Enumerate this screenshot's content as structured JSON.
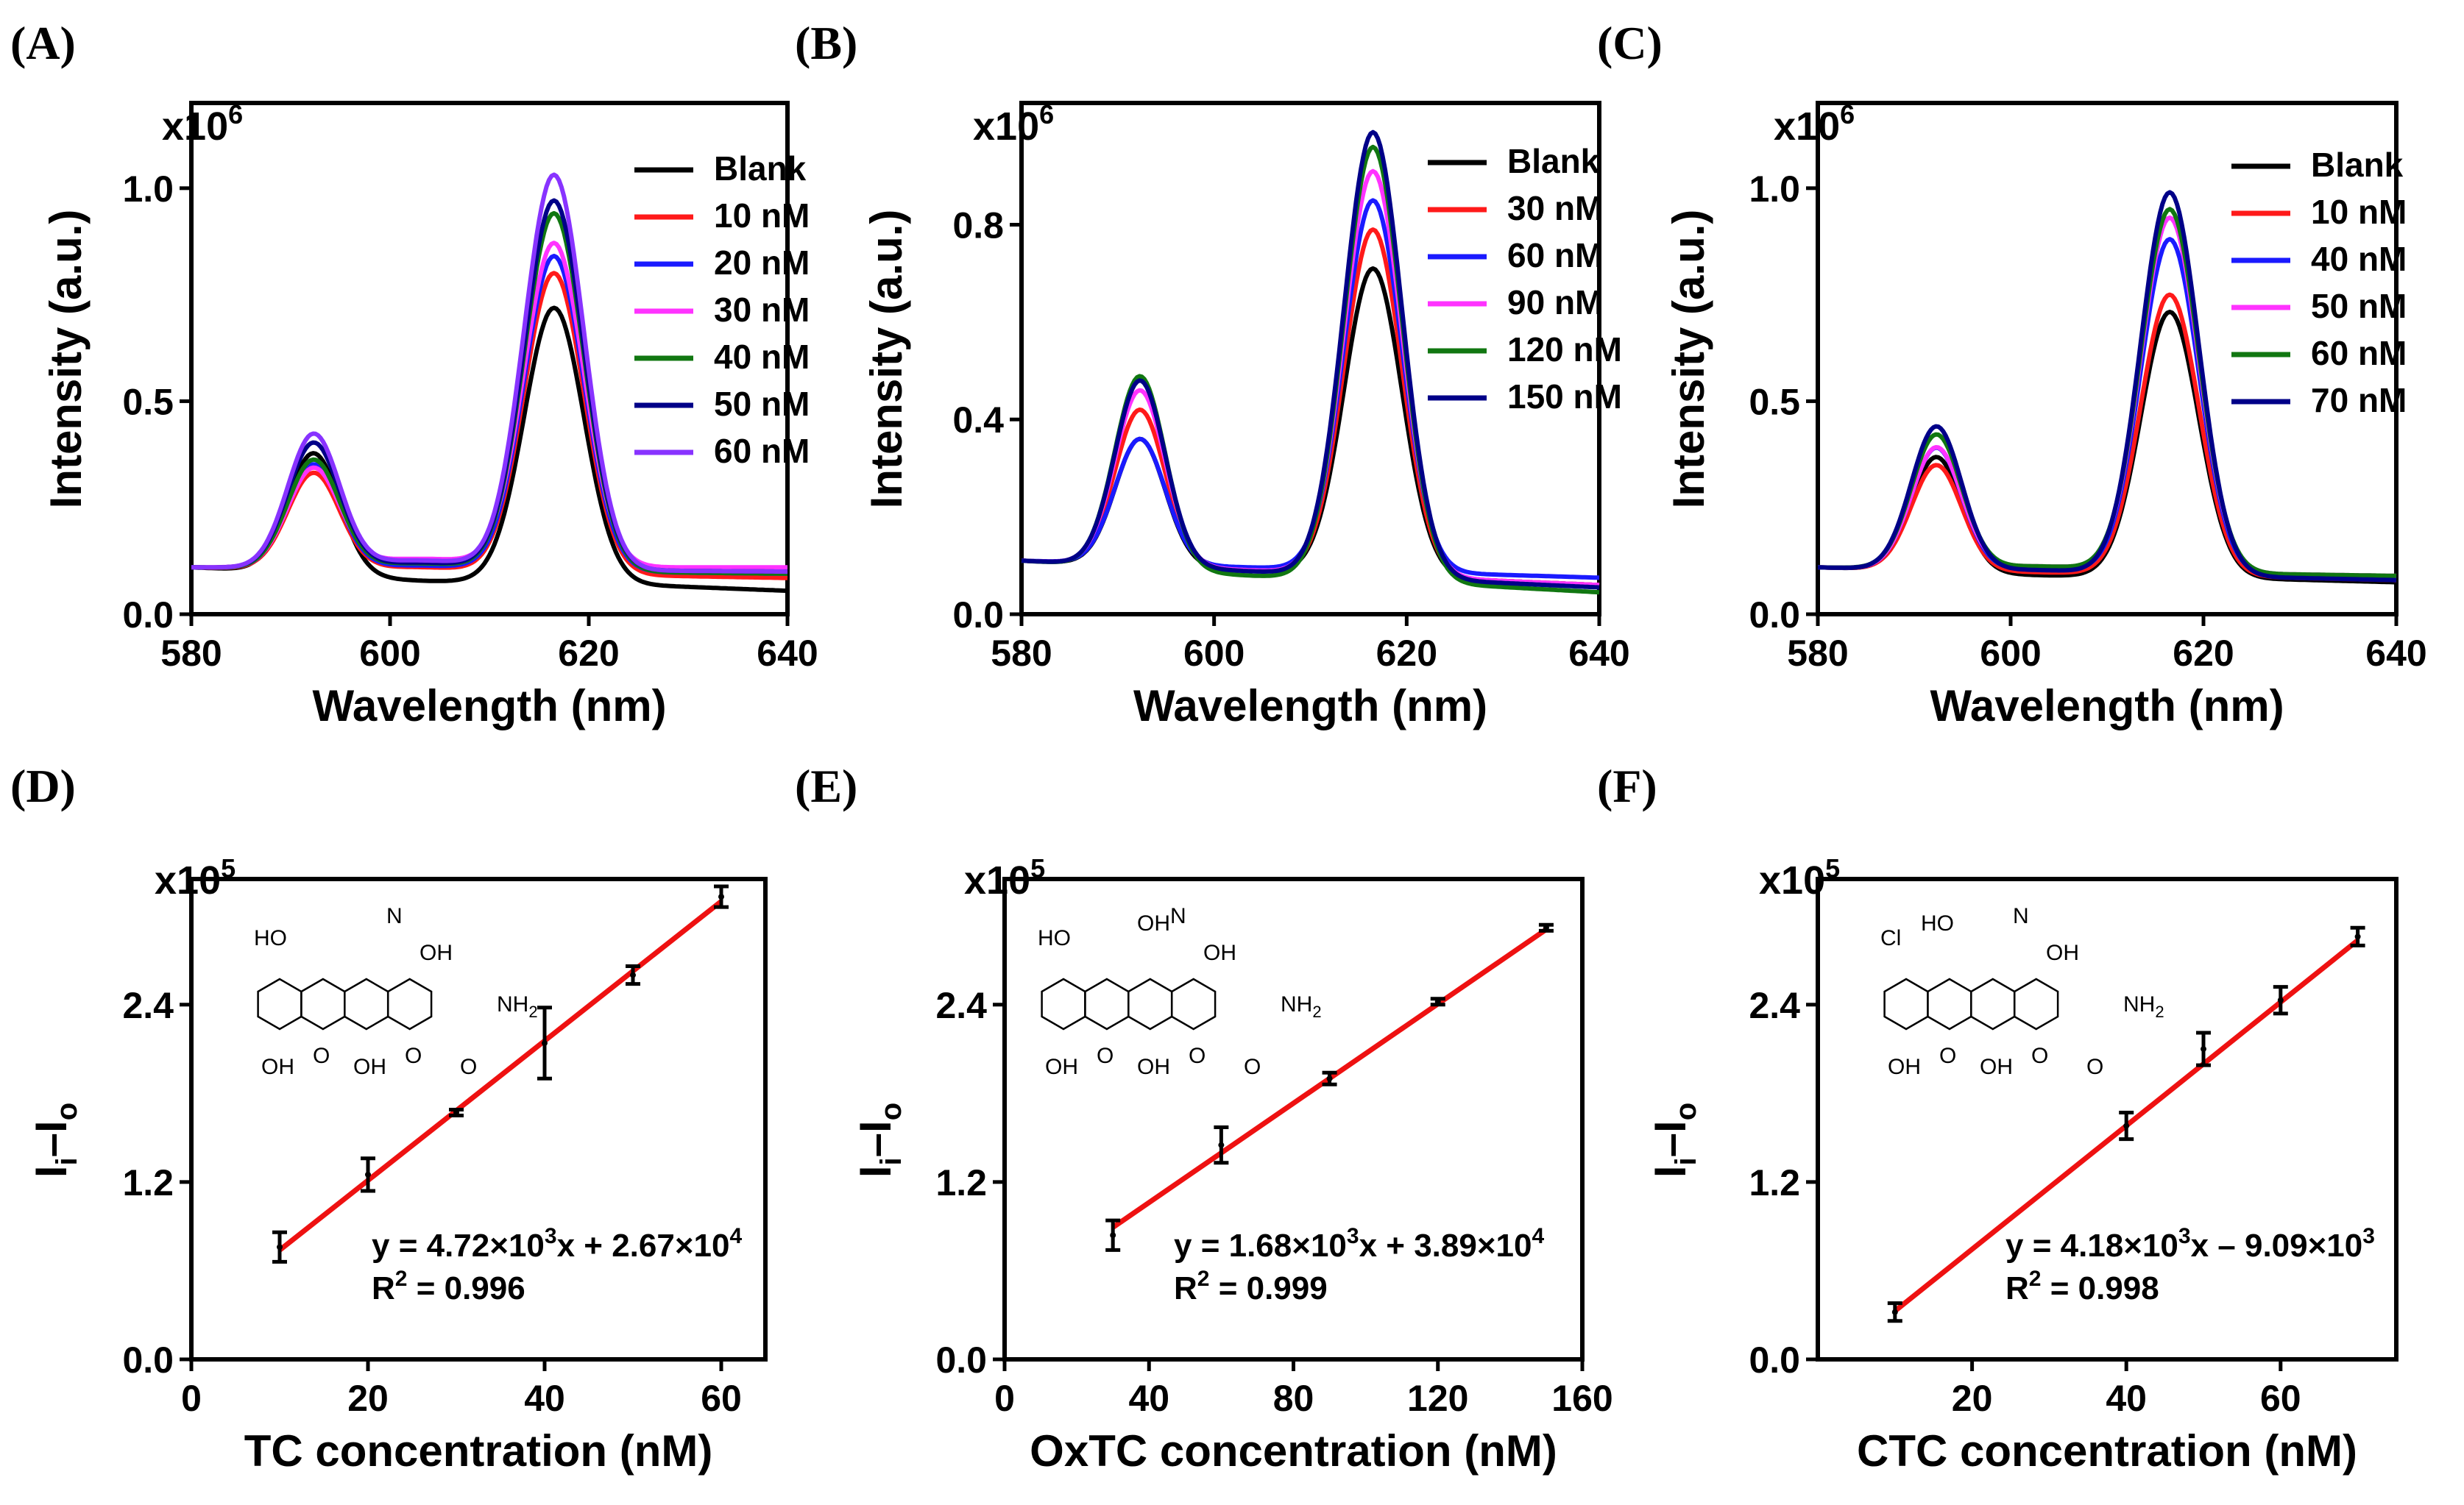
{
  "colors": {
    "blank": "#000000",
    "red": "#ff1a1a",
    "blue": "#1a1aff",
    "magenta": "#ff33ff",
    "green": "#117711",
    "navy": "#000088",
    "violet": "#8833ff",
    "fit_line": "#ee1111"
  },
  "chart_data": [
    {
      "panel": "(A)",
      "type": "line",
      "xlabel": "Wavelength (nm)",
      "ylabel": "Intensity (a.u.)",
      "multiplier": "x10",
      "multiplier_exp": "6",
      "xlim": [
        580,
        640
      ],
      "ylim": [
        0,
        1.2
      ],
      "xticks": [
        580,
        600,
        620,
        640
      ],
      "yticks": [
        0.0,
        0.5,
        1.0
      ],
      "ytick_labels": [
        "0.0",
        "0.5",
        "1.0"
      ],
      "base_levels": {
        "start": 0.115,
        "mid": 0.115,
        "end": 0.075
      },
      "series": [
        {
          "name": "Blank",
          "color": "#000000",
          "peak1": 0.38,
          "peak2": 0.72,
          "mid": 0.09,
          "end": 0.055
        },
        {
          "name": "10 nM",
          "color": "#ff1a1a",
          "peak1": 0.33,
          "peak2": 0.8,
          "mid": 0.11,
          "end": 0.085
        },
        {
          "name": "20 nM",
          "color": "#1a1aff",
          "peak1": 0.35,
          "peak2": 0.84,
          "mid": 0.11,
          "end": 0.095
        },
        {
          "name": "30 nM",
          "color": "#ff33ff",
          "peak1": 0.34,
          "peak2": 0.87,
          "mid": 0.12,
          "end": 0.11
        },
        {
          "name": "40 nM",
          "color": "#117711",
          "peak1": 0.36,
          "peak2": 0.94,
          "mid": 0.115,
          "end": 0.095
        },
        {
          "name": "50 nM",
          "color": "#000088",
          "peak1": 0.4,
          "peak2": 0.97,
          "mid": 0.115,
          "end": 0.1
        },
        {
          "name": "60 nM",
          "color": "#8833ff",
          "peak1": 0.42,
          "peak2": 1.03,
          "mid": 0.12,
          "end": 0.1
        }
      ]
    },
    {
      "panel": "(B)",
      "type": "line",
      "xlabel": "Wavelength (nm)",
      "ylabel": "Intensity (a.u.)",
      "multiplier": "x10",
      "multiplier_exp": "6",
      "xlim": [
        580,
        640
      ],
      "ylim": [
        0,
        1.05
      ],
      "xticks": [
        580,
        600,
        620,
        640
      ],
      "yticks": [
        0.0,
        0.4,
        0.8
      ],
      "ytick_labels": [
        "0.0",
        "0.4",
        "0.8"
      ],
      "series": [
        {
          "name": "Blank",
          "color": "#000000",
          "peak1": 0.36,
          "peak2": 0.71,
          "mid": 0.1,
          "end": 0.06
        },
        {
          "name": "30 nM",
          "color": "#ff1a1a",
          "peak1": 0.42,
          "peak2": 0.79,
          "mid": 0.1,
          "end": 0.06
        },
        {
          "name": "60 nM",
          "color": "#1a1aff",
          "peak1": 0.36,
          "peak2": 0.85,
          "mid": 0.1,
          "end": 0.075
        },
        {
          "name": "90 nM",
          "color": "#ff33ff",
          "peak1": 0.46,
          "peak2": 0.91,
          "mid": 0.1,
          "end": 0.06
        },
        {
          "name": "120 nM",
          "color": "#117711",
          "peak1": 0.49,
          "peak2": 0.96,
          "mid": 0.095,
          "end": 0.045
        },
        {
          "name": "150 nM",
          "color": "#000088",
          "peak1": 0.48,
          "peak2": 0.99,
          "mid": 0.1,
          "end": 0.055
        }
      ]
    },
    {
      "panel": "(C)",
      "type": "line",
      "xlabel": "Wavelength (nm)",
      "ylabel": "Intensity (a.u.)",
      "multiplier": "x10",
      "multiplier_exp": "6",
      "xlim": [
        580,
        640
      ],
      "ylim": [
        0,
        1.2
      ],
      "xticks": [
        580,
        600,
        620,
        640
      ],
      "yticks": [
        0.0,
        0.5,
        1.0
      ],
      "ytick_labels": [
        "0.0",
        "0.5",
        "1.0"
      ],
      "series": [
        {
          "name": "Blank",
          "color": "#000000",
          "peak1": 0.37,
          "peak2": 0.71,
          "mid": 0.095,
          "end": 0.075
        },
        {
          "name": "10 nM",
          "color": "#ff1a1a",
          "peak1": 0.35,
          "peak2": 0.75,
          "mid": 0.1,
          "end": 0.08
        },
        {
          "name": "40 nM",
          "color": "#1a1aff",
          "peak1": 0.39,
          "peak2": 0.88,
          "mid": 0.105,
          "end": 0.085
        },
        {
          "name": "50 nM",
          "color": "#ff33ff",
          "peak1": 0.39,
          "peak2": 0.93,
          "mid": 0.11,
          "end": 0.09
        },
        {
          "name": "60 nM",
          "color": "#117711",
          "peak1": 0.42,
          "peak2": 0.95,
          "mid": 0.11,
          "end": 0.09
        },
        {
          "name": "70 nM",
          "color": "#000088",
          "peak1": 0.44,
          "peak2": 0.99,
          "mid": 0.105,
          "end": 0.08
        }
      ]
    },
    {
      "panel": "(D)",
      "type": "scatter",
      "xlabel": "TC concentration (nM)",
      "ylabel": "I",
      "ylabel_sub1": "i",
      "ylabel_mid": "–I",
      "ylabel_sub2": "o",
      "multiplier": "x10",
      "multiplier_exp": "5",
      "xlim": [
        0,
        65
      ],
      "ylim": [
        0,
        3.25
      ],
      "xticks": [
        0,
        20,
        40,
        60
      ],
      "yticks": [
        0.0,
        1.2,
        2.4
      ],
      "ytick_labels": [
        "0.0",
        "1.2",
        "2.4"
      ],
      "x": [
        10,
        20,
        30,
        40,
        50,
        60
      ],
      "y": [
        0.76,
        1.25,
        1.67,
        2.14,
        2.6,
        3.13
      ],
      "yerr": [
        0.1,
        0.11,
        0.02,
        0.24,
        0.06,
        0.07
      ],
      "fit": {
        "slope": 0.0472,
        "intercept": 0.267,
        "x0": 10,
        "x1": 60
      },
      "equation": {
        "pre": "y = 4.72×10",
        "exp1": "3",
        "mid": "x + 2.67×10",
        "exp2": "4"
      },
      "r2": {
        "pre": "R",
        "exp": "2",
        "post": " = 0.996"
      },
      "structure_labels": {
        "HO": "HO",
        "N": "N",
        "OH_top": "OH",
        "NH2": "NH",
        "NH2_sub": "2",
        "OH_b1": "OH",
        "O_b1": "O",
        "OH_b2": "OH",
        "O_b2": "O",
        "O_amide": "O"
      }
    },
    {
      "panel": "(E)",
      "type": "scatter",
      "xlabel": "OxTC concentration (nM)",
      "ylabel": "I",
      "ylabel_sub1": "i",
      "ylabel_mid": "–I",
      "ylabel_sub2": "o",
      "multiplier": "x10",
      "multiplier_exp": "5",
      "xlim": [
        0,
        160
      ],
      "ylim": [
        0,
        3.25
      ],
      "xticks": [
        0,
        40,
        80,
        120,
        160
      ],
      "yticks": [
        0.0,
        1.2,
        2.4
      ],
      "ytick_labels": [
        "0.0",
        "1.2",
        "2.4"
      ],
      "x": [
        30,
        60,
        90,
        120,
        150
      ],
      "y": [
        0.84,
        1.45,
        1.9,
        2.42,
        2.92
      ],
      "yerr": [
        0.1,
        0.12,
        0.04,
        0.02,
        0.02
      ],
      "fit": {
        "slope": 0.0168,
        "intercept": 0.389,
        "x0": 30,
        "x1": 150
      },
      "equation": {
        "pre": "y = 1.68×10",
        "exp1": "3",
        "mid": "x + 3.89×10",
        "exp2": "4"
      },
      "r2": {
        "pre": "R",
        "exp": "2",
        "post": " = 0.999"
      },
      "structure_labels": {
        "HO": "HO",
        "OH_mid": "OH",
        "N": "N",
        "OH_top": "OH",
        "NH2": "NH",
        "NH2_sub": "2",
        "OH_b0": "OH",
        "O_b1": "O",
        "OH_b2": "OH",
        "O_b2": "O",
        "O_amide": "O"
      }
    },
    {
      "panel": "(F)",
      "type": "scatter",
      "xlabel": "CTC concentration (nM)",
      "ylabel": "I",
      "ylabel_sub1": "i",
      "ylabel_mid": "–I",
      "ylabel_sub2": "o",
      "multiplier": "x10",
      "multiplier_exp": "5",
      "xlim": [
        0,
        75
      ],
      "ylim": [
        0,
        3.25
      ],
      "xticks": [
        20,
        40,
        60
      ],
      "yticks": [
        0.0,
        1.2,
        2.4
      ],
      "ytick_labels": [
        "0.0",
        "1.2",
        "2.4"
      ],
      "x": [
        10,
        40,
        50,
        60,
        70
      ],
      "y": [
        0.32,
        1.58,
        2.1,
        2.43,
        2.86
      ],
      "yerr": [
        0.06,
        0.09,
        0.11,
        0.09,
        0.06
      ],
      "fit": {
        "slope": 0.0418,
        "intercept": -0.0909,
        "x0": 10,
        "x1": 70
      },
      "equation": {
        "pre": "y = 4.18×10",
        "exp1": "3",
        "mid": "x – 9.09×10",
        "exp2": "3"
      },
      "r2": {
        "pre": "R",
        "exp": "2",
        "post": " = 0.998"
      },
      "structure_labels": {
        "Cl": "Cl",
        "HO": "HO",
        "N": "N",
        "OH_top": "OH",
        "NH2": "NH",
        "NH2_sub": "2",
        "OH_b1": "OH",
        "O_b1": "O",
        "OH_b2": "OH",
        "O_b2": "O",
        "O_amide": "O"
      }
    }
  ]
}
